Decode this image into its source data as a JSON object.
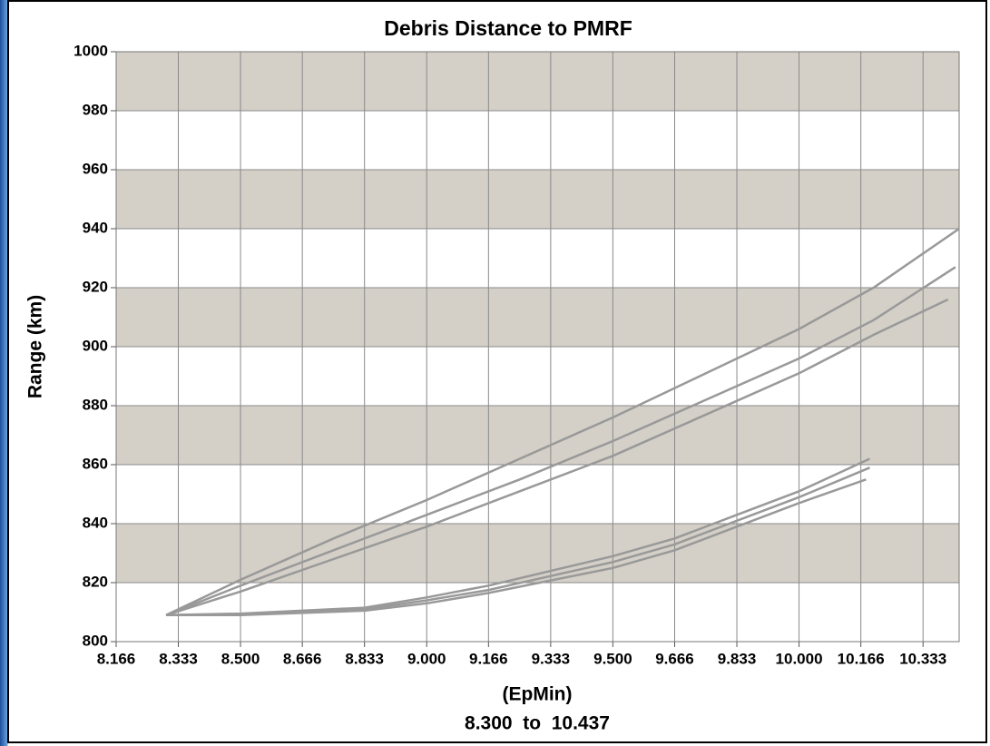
{
  "chart_data": {
    "type": "line",
    "title": "Debris Distance to PMRF",
    "y_label": "Range (km)",
    "x_label": "(EpMin)",
    "x_range_label": "8.300  to  10.437",
    "xlim": [
      8.166,
      10.43
    ],
    "ylim": [
      800,
      1000
    ],
    "xticks": [
      8.166,
      8.333,
      {
        "value": 8.5,
        "label": "8.500"
      },
      8.666,
      8.833,
      {
        "value": 9.0,
        "label": "9.000"
      },
      9.166,
      9.333,
      {
        "value": 9.5,
        "label": "9.500"
      },
      9.666,
      9.833,
      {
        "value": 10.0,
        "label": "10.000"
      },
      10.166,
      10.333
    ],
    "yticks": [
      800,
      820,
      840,
      860,
      880,
      900,
      920,
      940,
      960,
      980,
      1000
    ],
    "grid": true,
    "band_color": "#d4d0c8",
    "series": [
      {
        "color": "#999999",
        "x": [
          8.3,
          8.5,
          8.75,
          9.0,
          9.25,
          9.5,
          9.75,
          10.0,
          10.2,
          10.43
        ],
        "values": [
          809,
          821,
          835,
          848,
          862,
          876,
          891,
          906,
          920,
          940
        ]
      },
      {
        "color": "#999999",
        "x": [
          8.3,
          8.5,
          8.75,
          9.0,
          9.25,
          9.5,
          9.75,
          10.0,
          10.2,
          10.42
        ],
        "values": [
          809,
          819,
          831,
          843,
          855,
          868,
          882,
          896,
          909,
          927
        ]
      },
      {
        "color": "#999999",
        "x": [
          8.3,
          8.5,
          8.75,
          9.0,
          9.25,
          9.5,
          9.75,
          10.0,
          10.2,
          10.4
        ],
        "values": [
          809,
          817,
          828,
          839,
          851,
          863,
          877,
          891,
          904,
          916
        ]
      },
      {
        "color": "#999999",
        "x": [
          8.3,
          8.5,
          8.833,
          9.0,
          9.166,
          9.5,
          9.666,
          9.833,
          10.0,
          10.19
        ],
        "values": [
          809,
          809.5,
          811.5,
          815,
          819,
          829,
          835,
          843,
          851,
          862
        ]
      },
      {
        "color": "#999999",
        "x": [
          8.3,
          8.5,
          8.833,
          9.0,
          9.166,
          9.5,
          9.666,
          9.833,
          10.0,
          10.19
        ],
        "values": [
          809,
          809.3,
          811,
          814,
          817.5,
          827,
          833,
          841,
          849,
          859
        ]
      },
      {
        "color": "#999999",
        "x": [
          8.3,
          8.5,
          8.833,
          9.0,
          9.166,
          9.5,
          9.666,
          9.833,
          10.0,
          10.18
        ],
        "values": [
          809,
          809,
          810.5,
          813,
          816.5,
          825,
          831,
          839,
          847,
          855
        ]
      }
    ]
  }
}
